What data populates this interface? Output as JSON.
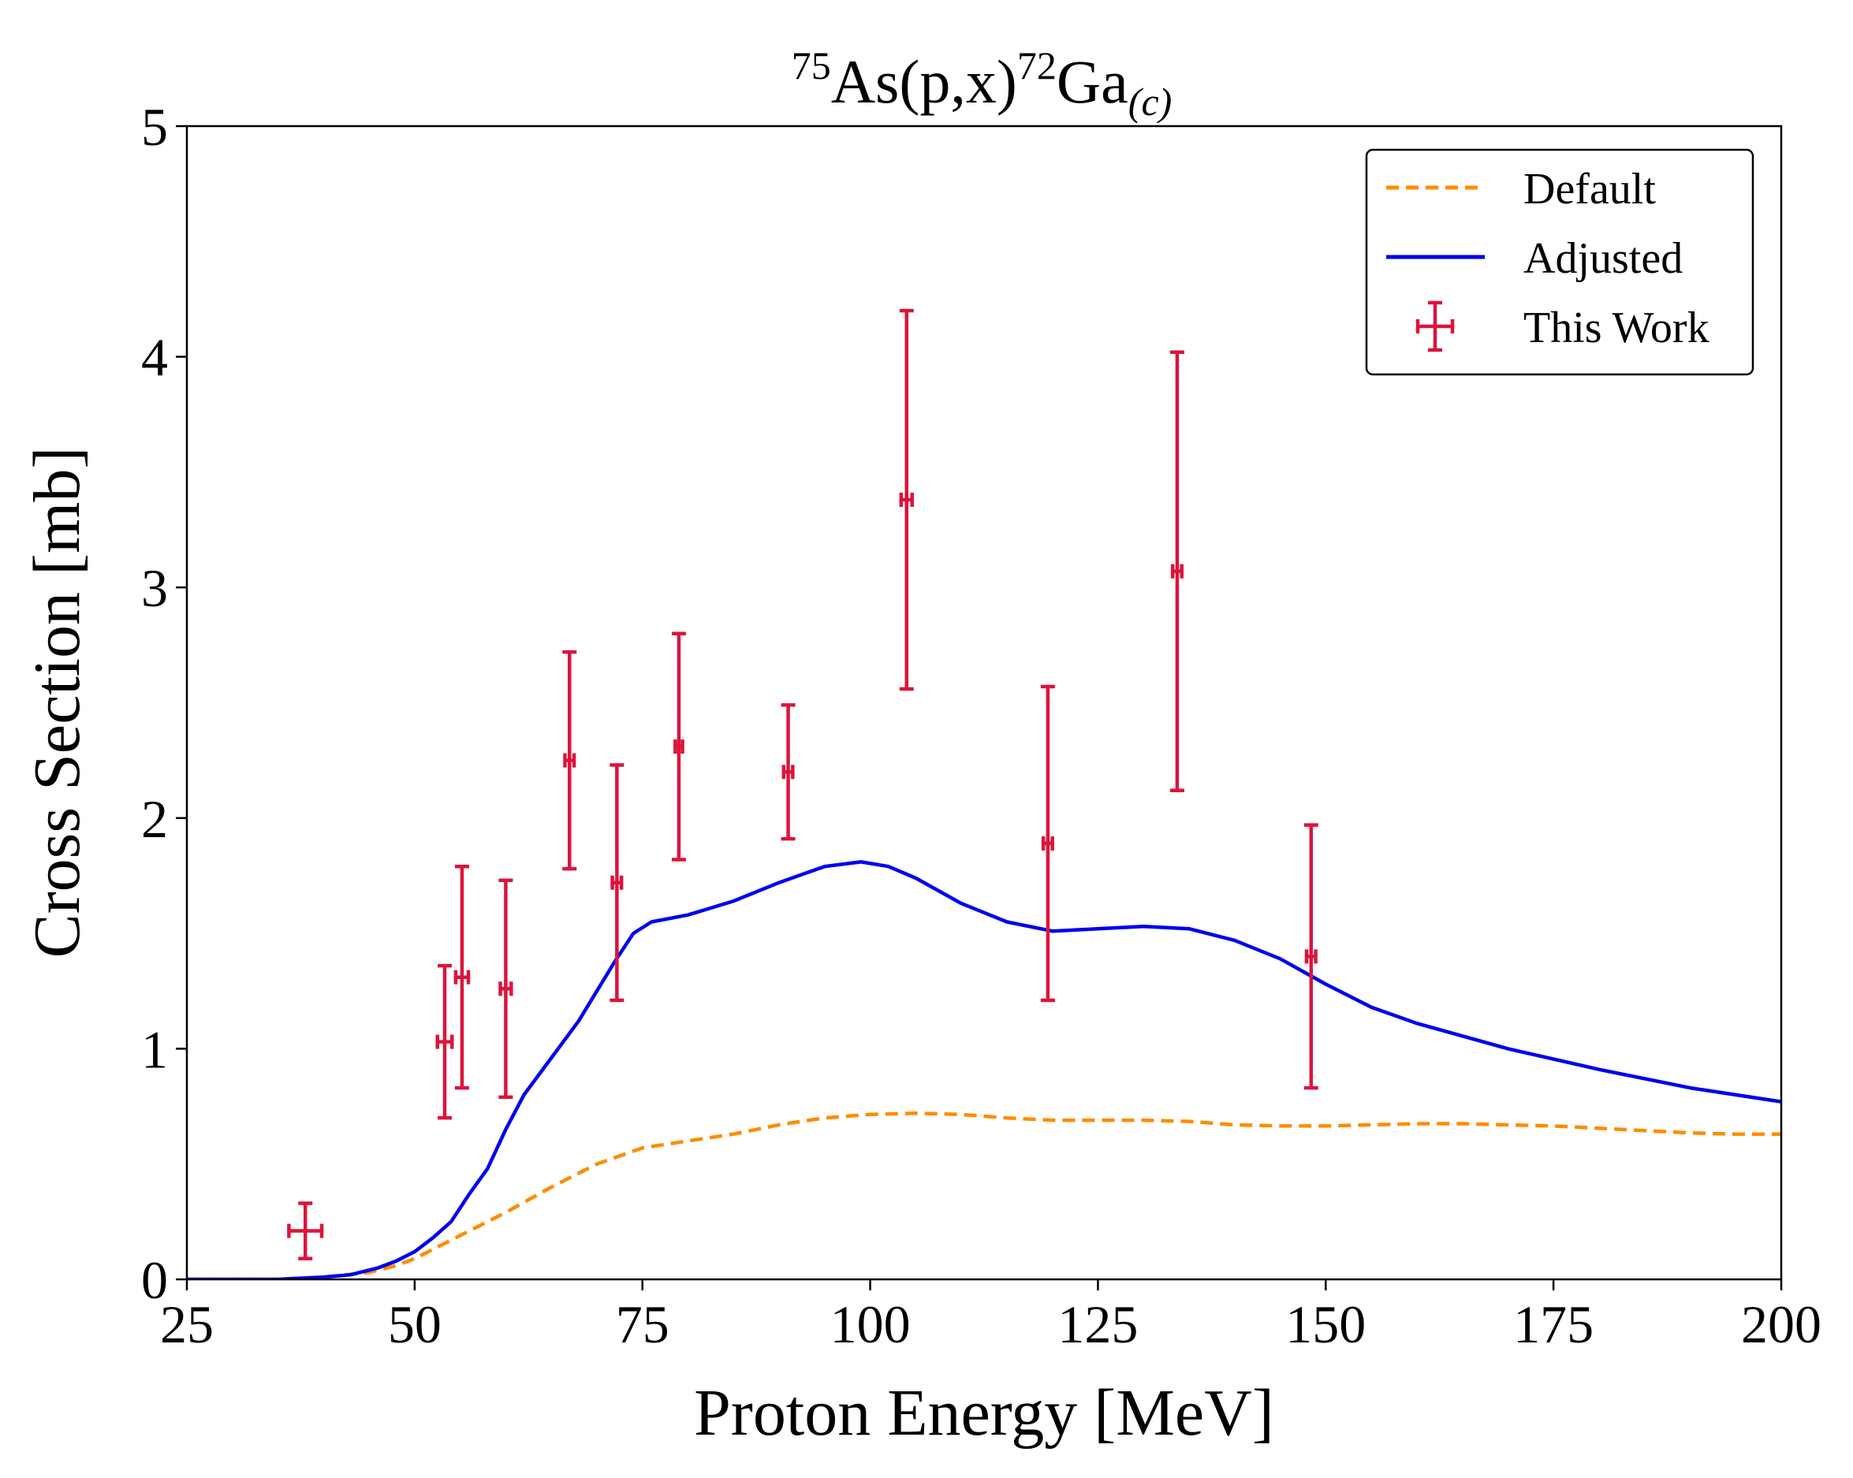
{
  "chart_data": {
    "type": "line",
    "title": {
      "sup1": "75",
      "part1": "As(p,x)",
      "sup2": "72",
      "part2": "Ga",
      "sub": "(c)"
    },
    "xlabel": "Proton Energy [MeV]",
    "ylabel": "Cross Section [mb]",
    "xlim": [
      25,
      200
    ],
    "ylim": [
      0,
      5
    ],
    "xticks": [
      25,
      50,
      75,
      100,
      125,
      150,
      175,
      200
    ],
    "yticks": [
      0,
      1,
      2,
      3,
      4,
      5
    ],
    "legend_position": "top-right",
    "colors": {
      "default": "#ff8c00",
      "adjusted": "#0000ee",
      "data": "#dc143c"
    },
    "series": [
      {
        "name": "Default",
        "style": "dashed",
        "points": [
          [
            25,
            0
          ],
          [
            35,
            0
          ],
          [
            40,
            0.01
          ],
          [
            45,
            0.03
          ],
          [
            48,
            0.06
          ],
          [
            50,
            0.09
          ],
          [
            52,
            0.13
          ],
          [
            55,
            0.19
          ],
          [
            58,
            0.25
          ],
          [
            60,
            0.29
          ],
          [
            65,
            0.4
          ],
          [
            70,
            0.5
          ],
          [
            75,
            0.57
          ],
          [
            80,
            0.6
          ],
          [
            85,
            0.63
          ],
          [
            90,
            0.67
          ],
          [
            95,
            0.7
          ],
          [
            100,
            0.715
          ],
          [
            105,
            0.72
          ],
          [
            110,
            0.715
          ],
          [
            115,
            0.7
          ],
          [
            120,
            0.69
          ],
          [
            125,
            0.69
          ],
          [
            130,
            0.69
          ],
          [
            135,
            0.685
          ],
          [
            140,
            0.67
          ],
          [
            145,
            0.665
          ],
          [
            150,
            0.665
          ],
          [
            155,
            0.67
          ],
          [
            160,
            0.675
          ],
          [
            165,
            0.675
          ],
          [
            170,
            0.67
          ],
          [
            175,
            0.665
          ],
          [
            180,
            0.655
          ],
          [
            185,
            0.645
          ],
          [
            190,
            0.635
          ],
          [
            195,
            0.63
          ],
          [
            200,
            0.63
          ]
        ]
      },
      {
        "name": "Adjusted",
        "style": "solid",
        "points": [
          [
            25,
            0
          ],
          [
            35,
            0
          ],
          [
            40,
            0.01
          ],
          [
            43,
            0.02
          ],
          [
            46,
            0.05
          ],
          [
            48,
            0.08
          ],
          [
            50,
            0.12
          ],
          [
            52,
            0.18
          ],
          [
            54,
            0.25
          ],
          [
            56,
            0.37
          ],
          [
            58,
            0.48
          ],
          [
            60,
            0.65
          ],
          [
            62,
            0.8
          ],
          [
            65,
            0.96
          ],
          [
            68,
            1.12
          ],
          [
            70,
            1.25
          ],
          [
            72,
            1.38
          ],
          [
            74,
            1.5
          ],
          [
            76,
            1.55
          ],
          [
            80,
            1.58
          ],
          [
            85,
            1.64
          ],
          [
            90,
            1.72
          ],
          [
            95,
            1.79
          ],
          [
            99,
            1.81
          ],
          [
            102,
            1.79
          ],
          [
            105,
            1.74
          ],
          [
            110,
            1.63
          ],
          [
            115,
            1.55
          ],
          [
            120,
            1.51
          ],
          [
            125,
            1.52
          ],
          [
            130,
            1.53
          ],
          [
            135,
            1.52
          ],
          [
            140,
            1.47
          ],
          [
            145,
            1.39
          ],
          [
            150,
            1.28
          ],
          [
            155,
            1.18
          ],
          [
            160,
            1.11
          ],
          [
            170,
            1.0
          ],
          [
            180,
            0.91
          ],
          [
            190,
            0.83
          ],
          [
            200,
            0.77
          ]
        ]
      }
    ],
    "measurements": {
      "name": "This Work",
      "points": [
        {
          "x": 38.0,
          "y": 0.21,
          "xerr": 1.8,
          "yerr": 0.12
        },
        {
          "x": 53.3,
          "y": 1.03,
          "xerr": 0.8,
          "yerr": 0.33
        },
        {
          "x": 55.2,
          "y": 1.31,
          "xerr": 0.7,
          "yerr": 0.48
        },
        {
          "x": 60.0,
          "y": 1.26,
          "xerr": 0.6,
          "yerr": 0.47
        },
        {
          "x": 67.0,
          "y": 2.25,
          "xerr": 0.5,
          "yerr": 0.47
        },
        {
          "x": 72.2,
          "y": 1.72,
          "xerr": 0.5,
          "yerr": 0.51
        },
        {
          "x": 79.0,
          "y": 2.31,
          "xerr": 0.4,
          "yerr": 0.49
        },
        {
          "x": 91.0,
          "y": 2.2,
          "xerr": 0.5,
          "yerr": 0.29
        },
        {
          "x": 104.0,
          "y": 3.38,
          "xerr": 0.6,
          "yerr": 0.82
        },
        {
          "x": 119.5,
          "y": 1.89,
          "xerr": 0.5,
          "yerr": 0.68
        },
        {
          "x": 133.7,
          "y": 3.07,
          "xerr": 0.5,
          "yerr": 0.95
        },
        {
          "x": 148.4,
          "y": 1.4,
          "xerr": 0.5,
          "yerr": 0.57
        }
      ]
    }
  }
}
